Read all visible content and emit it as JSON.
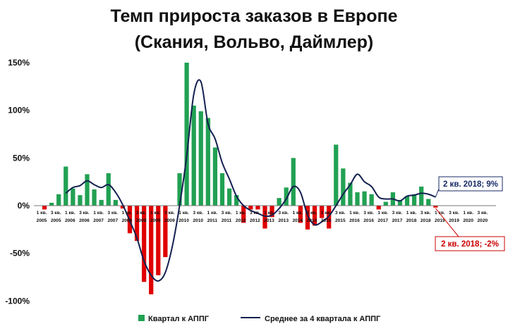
{
  "chart_data": {
    "type": "bar+line",
    "title_line1": "Темп прироста заказов в Европе",
    "title_line2": "(Скания, Вольво, Даймлер)",
    "y_ticks": [
      "150%",
      "100%",
      "50%",
      "0%",
      "-50%",
      "-100%"
    ],
    "ylim": [
      -100,
      150
    ],
    "x_labels": [
      {
        "q": "1 кв.",
        "y": "2005"
      },
      {
        "q": "3 кв.",
        "y": "2005"
      },
      {
        "q": "1 кв.",
        "y": "2006"
      },
      {
        "q": "3 кв.",
        "y": "2006"
      },
      {
        "q": "1 кв.",
        "y": "2007"
      },
      {
        "q": "3 кв.",
        "y": "2007"
      },
      {
        "q": "1 кв.",
        "y": "2008"
      },
      {
        "q": "3 кв.",
        "y": "2008"
      },
      {
        "q": "1 кв.",
        "y": "2009"
      },
      {
        "q": "3 кв.",
        "y": "2009"
      },
      {
        "q": "1 кв.",
        "y": "2010"
      },
      {
        "q": "3 кв.",
        "y": "2010"
      },
      {
        "q": "1 кв.",
        "y": "2011"
      },
      {
        "q": "3 кв.",
        "y": "2011"
      },
      {
        "q": "1 кв.",
        "y": "2012"
      },
      {
        "q": "3 кв.",
        "y": "2012"
      },
      {
        "q": "1 кв.",
        "y": "2013"
      },
      {
        "q": "3 кв.",
        "y": "2013"
      },
      {
        "q": "1 кв.",
        "y": "2014"
      },
      {
        "q": "3 кв.",
        "y": "2014"
      },
      {
        "q": "1 кв.",
        "y": "2015"
      },
      {
        "q": "3 кв.",
        "y": "2015"
      },
      {
        "q": "1 кв.",
        "y": "2016"
      },
      {
        "q": "3 кв.",
        "y": "2016"
      },
      {
        "q": "1 кв.",
        "y": "2017"
      },
      {
        "q": "3 кв.",
        "y": "2017"
      },
      {
        "q": "1 кв.",
        "y": "2018"
      },
      {
        "q": "3 кв.",
        "y": "2018"
      },
      {
        "q": "1 кв.",
        "y": "2019"
      },
      {
        "q": "3 кв.",
        "y": "2019"
      },
      {
        "q": "1 кв.",
        "y": "2020"
      },
      {
        "q": "3 кв.",
        "y": "2020"
      }
    ],
    "series": [
      {
        "name": "Квартал  к АППГ",
        "kind": "bar",
        "values": [
          -4,
          3,
          12,
          41,
          18,
          11,
          33,
          17,
          6,
          34,
          6,
          -3,
          -29,
          -37,
          -80,
          -93,
          -73,
          -54,
          0,
          34,
          150,
          105,
          99,
          92,
          61,
          34,
          18,
          11,
          -18,
          -4,
          -4,
          -24,
          -12,
          8,
          19,
          50,
          -18,
          -25,
          -21,
          -13,
          -24,
          64,
          39,
          24,
          14,
          15,
          12,
          -4,
          4,
          14,
          6,
          10,
          12,
          20,
          7,
          -2
        ],
        "colors": {
          "positive": "#21a153",
          "negative": "#e00000"
        }
      },
      {
        "name": "Среднее за 4 квартала  к АППГ",
        "kind": "line",
        "color": "#142050",
        "values": [
          null,
          null,
          null,
          13,
          19,
          21,
          26,
          22,
          19,
          22,
          14,
          1,
          -16,
          -34,
          -58,
          -73,
          -79,
          -70,
          -42,
          0,
          52,
          117,
          130,
          86,
          70,
          45,
          28,
          10,
          0,
          -5,
          -8,
          -11,
          -10,
          -3,
          7,
          20,
          14,
          -10,
          -20,
          -17,
          -11,
          0,
          12,
          22,
          33,
          25,
          20,
          9,
          7,
          7,
          5,
          10,
          11,
          13,
          12,
          9
        ]
      }
    ],
    "callouts": [
      {
        "text": "2 кв. 2018; 9%",
        "series": "line",
        "index": 55
      },
      {
        "text": "2 кв. 2018; -2%",
        "series": "bar",
        "index": 55
      }
    ],
    "legend_position": "bottom",
    "grid": false
  }
}
